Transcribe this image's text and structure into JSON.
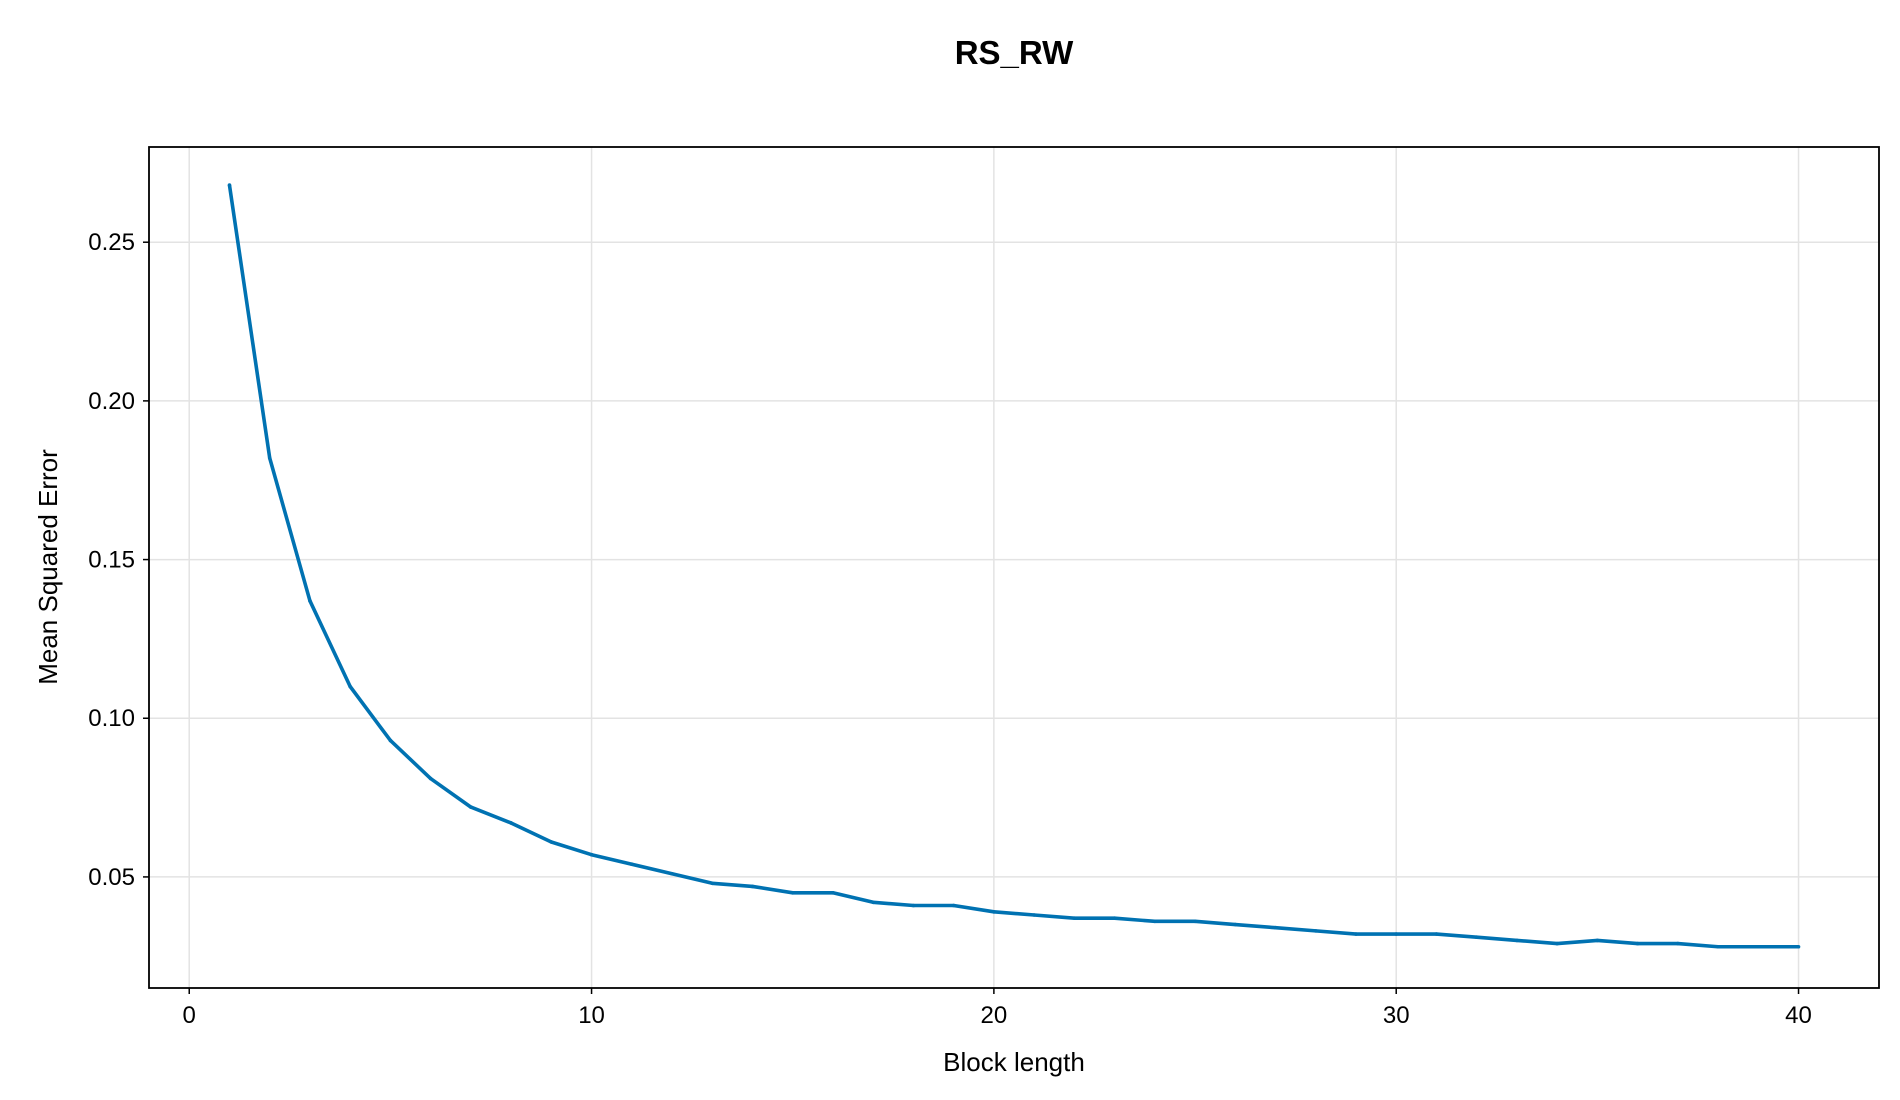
{
  "chart_data": {
    "type": "line",
    "title": "RS_RW",
    "xlabel": "Block length",
    "ylabel": "Mean Squared Error",
    "xlim": [
      -1,
      42
    ],
    "ylim": [
      0.015,
      0.28
    ],
    "xticks": [
      0,
      10,
      20,
      30,
      40
    ],
    "xtick_labels": [
      "0",
      "10",
      "20",
      "30",
      "40"
    ],
    "yticks": [
      0.05,
      0.1,
      0.15,
      0.2,
      0.25
    ],
    "ytick_labels": [
      "0.05",
      "0.10",
      "0.15",
      "0.20",
      "0.25"
    ],
    "grid": true,
    "legend": "none",
    "series": [
      {
        "color": "#0072b2",
        "x": [
          1,
          2,
          3,
          4,
          5,
          6,
          7,
          8,
          9,
          10,
          11,
          12,
          13,
          14,
          15,
          16,
          17,
          18,
          19,
          20,
          21,
          22,
          23,
          24,
          25,
          26,
          27,
          28,
          29,
          30,
          31,
          32,
          33,
          34,
          35,
          36,
          37,
          38,
          39,
          40
        ],
        "y": [
          0.268,
          0.182,
          0.137,
          0.11,
          0.093,
          0.081,
          0.072,
          0.067,
          0.061,
          0.057,
          0.054,
          0.051,
          0.048,
          0.047,
          0.045,
          0.045,
          0.042,
          0.041,
          0.041,
          0.039,
          0.038,
          0.037,
          0.037,
          0.036,
          0.036,
          0.035,
          0.034,
          0.033,
          0.032,
          0.032,
          0.032,
          0.031,
          0.03,
          0.029,
          0.03,
          0.029,
          0.029,
          0.028,
          0.028,
          0.028
        ]
      }
    ]
  }
}
